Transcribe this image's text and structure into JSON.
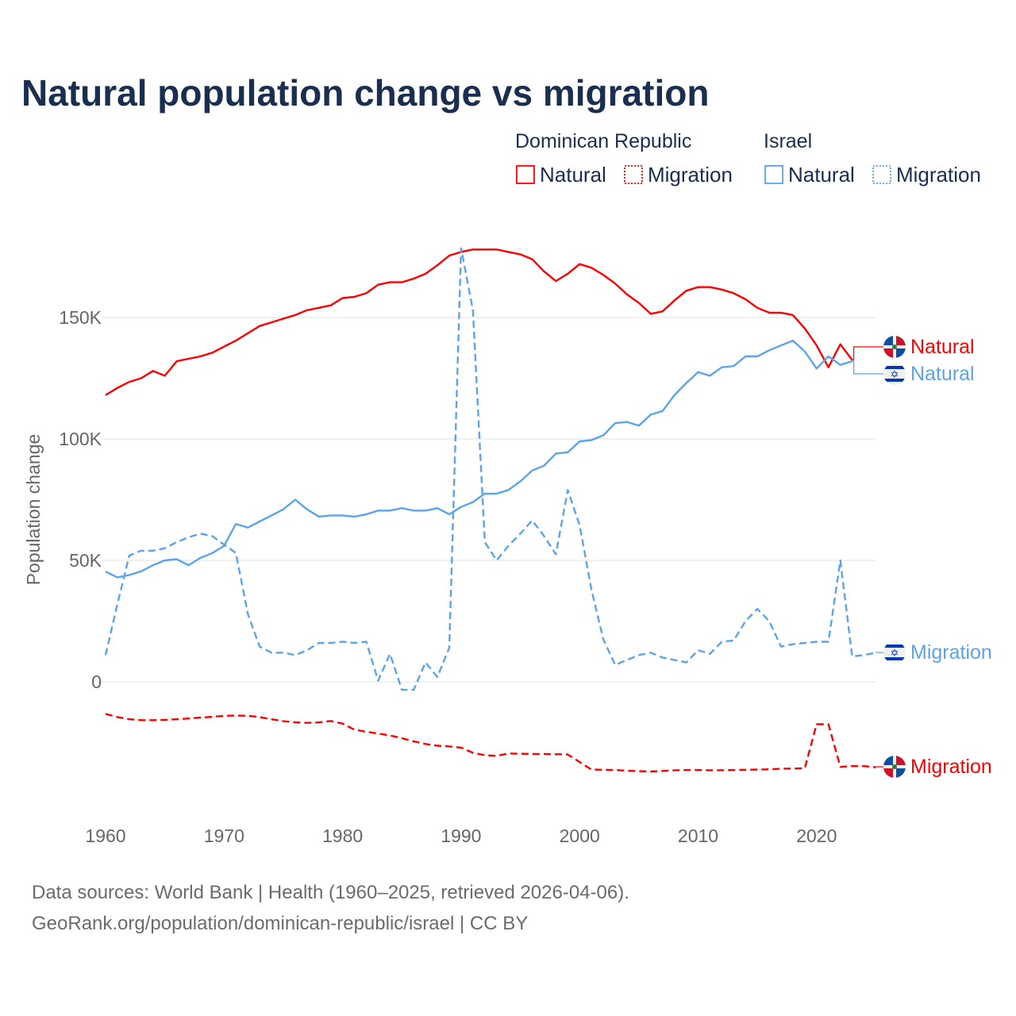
{
  "title": "Natural population change vs migration",
  "legend": {
    "groups": [
      {
        "name": "Dominican Republic",
        "items": [
          "Natural",
          "Migration"
        ]
      },
      {
        "name": "Israel",
        "items": [
          "Natural",
          "Migration"
        ]
      }
    ]
  },
  "footer": {
    "line1": "Data sources: World Bank | Health (1960–2025, retrieved 2026-04-06).",
    "line2": "GeoRank.org/population/dominican-republic/israel | CC BY"
  },
  "colors": {
    "dominican_republic": "#ff0000",
    "israel": "#5ba4ec",
    "title": "#1a2e4f"
  },
  "chart_data": {
    "type": "line",
    "title": "Natural population change vs migration",
    "xlabel": "",
    "ylabel": "Population change",
    "xlim": [
      1960,
      2025
    ],
    "ylim": [
      -45000,
      185000
    ],
    "grid": true,
    "legend_position": "top-right",
    "x_ticks": [
      "1960",
      "1970",
      "1980",
      "1990",
      "2000",
      "2010",
      "2020"
    ],
    "y_ticks": [
      {
        "value": 0,
        "label": "0"
      },
      {
        "value": 50000,
        "label": "50K"
      },
      {
        "value": 100000,
        "label": "100K"
      },
      {
        "value": 150000,
        "label": "150K"
      }
    ],
    "series": [
      {
        "name": "Natural",
        "country": "Dominican Republic",
        "style": "solid",
        "color": "#ff0000",
        "end_label": "Natural",
        "start_year": 1960,
        "values": [
          118000,
          121000,
          123500,
          125000,
          128000,
          126000,
          132000,
          133000,
          134000,
          135500,
          138000,
          140500,
          143500,
          146500,
          148000,
          149500,
          151000,
          153000,
          154000,
          155000,
          158000,
          158500,
          160000,
          163500,
          164500,
          164500,
          166000,
          168000,
          171500,
          175500,
          177000,
          178000,
          178000,
          178000,
          177000,
          176000,
          174000,
          169000,
          165000,
          168000,
          172000,
          170500,
          167500,
          164000,
          159500,
          156000,
          151500,
          152500,
          157000,
          161000,
          162500,
          162500,
          161500,
          160000,
          157500,
          154000,
          152000,
          152000,
          151000,
          145500,
          138500,
          129500,
          139000,
          132500
        ]
      },
      {
        "name": "Migration",
        "country": "Dominican Republic",
        "style": "dashed",
        "color": "#ff0000",
        "end_label": "Migration",
        "start_year": 1960,
        "values": [
          -13200,
          -14500,
          -15400,
          -15800,
          -15800,
          -15700,
          -15400,
          -15100,
          -14700,
          -14400,
          -14000,
          -13900,
          -14000,
          -14500,
          -15400,
          -16200,
          -16700,
          -16900,
          -16700,
          -16100,
          -17200,
          -19700,
          -20600,
          -21300,
          -22100,
          -23200,
          -24500,
          -25600,
          -26300,
          -26600,
          -27100,
          -29200,
          -30200,
          -30500,
          -29500,
          -29600,
          -29700,
          -29700,
          -29800,
          -29900,
          -33000,
          -36100,
          -36200,
          -36300,
          -36600,
          -36800,
          -36900,
          -36700,
          -36400,
          -36300,
          -36300,
          -36400,
          -36400,
          -36300,
          -36200,
          -36100,
          -36000,
          -35800,
          -35700,
          -35600,
          -17500,
          -17500,
          -35000,
          -34700,
          -34700,
          -35200
        ]
      },
      {
        "name": "Natural",
        "country": "Israel",
        "style": "solid",
        "color": "#5ba4ec",
        "end_label": "Natural",
        "start_year": 1960,
        "values": [
          45400,
          43000,
          44000,
          45500,
          48000,
          50000,
          50500,
          48000,
          51000,
          53000,
          56000,
          65000,
          63500,
          66000,
          68500,
          71000,
          75000,
          71000,
          68000,
          68500,
          68500,
          68000,
          69000,
          70500,
          70500,
          71500,
          70500,
          70500,
          71500,
          69000,
          72000,
          74000,
          77500,
          77500,
          79000,
          82500,
          87000,
          89000,
          94000,
          94500,
          99000,
          99500,
          101500,
          106500,
          107000,
          105500,
          110000,
          111500,
          118000,
          123000,
          127500,
          126000,
          129500,
          130000,
          134000,
          134000,
          136500,
          138500,
          140500,
          136000,
          129000,
          134000,
          130500,
          132000
        ]
      },
      {
        "name": "Migration",
        "country": "Israel",
        "style": "dashed",
        "color": "#5ba4ec",
        "end_label": "Migration",
        "start_year": 1960,
        "values": [
          11000,
          32000,
          52000,
          54000,
          54000,
          55000,
          57500,
          59500,
          61000,
          60000,
          56500,
          53000,
          28000,
          14500,
          12000,
          12000,
          11000,
          13000,
          16000,
          16000,
          16500,
          16000,
          16500,
          500,
          11500,
          -3300,
          -3300,
          8000,
          2000,
          14000,
          178500,
          153000,
          57500,
          50000,
          56000,
          61000,
          66500,
          60000,
          52500,
          79000,
          64500,
          38000,
          17500,
          7000,
          9000,
          11000,
          12000,
          10000,
          9000,
          8000,
          13000,
          11500,
          16500,
          17000,
          25000,
          30000,
          25000,
          14500,
          15500,
          16000,
          16500,
          16500,
          50000,
          10500,
          11000,
          12000
        ]
      }
    ]
  }
}
